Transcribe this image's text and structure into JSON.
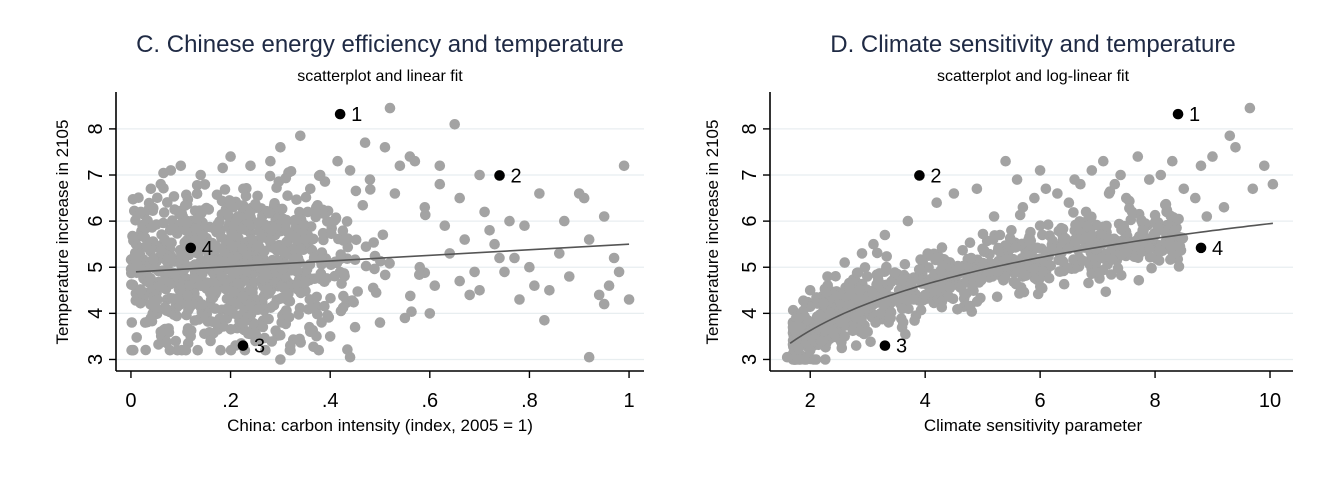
{
  "colors": {
    "title": "#1f2a44",
    "points": "#a3a3a3",
    "highlight": "#000000",
    "fit": "#555555",
    "grid": "#e8eef0",
    "axis": "#000000"
  },
  "chart_data": [
    {
      "type": "scatter",
      "title": "C.  Chinese energy efficiency and temperature",
      "subtitle": "scatterplot and linear fit",
      "xlabel": "China: carbon intensity  (index, 2005 = 1)",
      "ylabel": "Temperature increase in 2105",
      "xlim": [
        -0.03,
        1.03
      ],
      "ylim": [
        2.75,
        8.8
      ],
      "xticks": [
        0,
        0.2,
        0.4,
        0.6,
        0.8,
        1
      ],
      "xtick_labels": [
        "0",
        ".2",
        ".4",
        ".6",
        ".8",
        "1"
      ],
      "yticks": [
        3,
        4,
        5,
        6,
        7,
        8
      ],
      "ytick_labels": [
        "3",
        "4",
        "5",
        "6",
        "7",
        "8"
      ],
      "fit": {
        "type": "linear",
        "x": [
          0.01,
          1.0
        ],
        "y": [
          4.9,
          5.5
        ]
      },
      "highlighted": [
        {
          "label": "1",
          "x": 0.42,
          "y": 8.32
        },
        {
          "label": "2",
          "x": 0.74,
          "y": 6.99
        },
        {
          "label": "3",
          "x": 0.225,
          "y": 3.3
        },
        {
          "label": "4",
          "x": 0.12,
          "y": 5.42
        }
      ],
      "points": [
        [
          0.52,
          8.45
        ],
        [
          0.65,
          8.1
        ],
        [
          0.34,
          7.85
        ],
        [
          0.99,
          7.2
        ],
        [
          0.47,
          7.7
        ],
        [
          0.51,
          7.6
        ],
        [
          0.3,
          7.6
        ],
        [
          0.28,
          7.3
        ],
        [
          0.2,
          7.4
        ],
        [
          0.56,
          7.4
        ],
        [
          0.57,
          7.3
        ],
        [
          0.62,
          7.2
        ],
        [
          0.54,
          7.2
        ],
        [
          0.7,
          7.0
        ],
        [
          0.44,
          7.1
        ],
        [
          0.82,
          6.6
        ],
        [
          0.9,
          6.6
        ],
        [
          0.91,
          6.5
        ],
        [
          0.95,
          6.1
        ],
        [
          0.87,
          6.0
        ],
        [
          0.79,
          5.9
        ],
        [
          0.76,
          6.0
        ],
        [
          0.72,
          5.8
        ],
        [
          0.92,
          5.6
        ],
        [
          0.97,
          5.2
        ],
        [
          0.98,
          4.9
        ],
        [
          0.96,
          4.6
        ],
        [
          0.94,
          4.4
        ],
        [
          0.95,
          4.2
        ],
        [
          1.0,
          4.3
        ],
        [
          0.92,
          3.05
        ],
        [
          0.83,
          3.85
        ],
        [
          0.81,
          4.6
        ],
        [
          0.84,
          4.5
        ],
        [
          0.78,
          4.3
        ],
        [
          0.66,
          4.7
        ],
        [
          0.68,
          4.4
        ],
        [
          0.7,
          4.5
        ],
        [
          0.6,
          4.0
        ],
        [
          0.55,
          3.9
        ],
        [
          0.5,
          3.8
        ],
        [
          0.45,
          3.7
        ],
        [
          0.44,
          3.05
        ],
        [
          0.3,
          3.0
        ],
        [
          0.32,
          3.3
        ],
        [
          0.27,
          3.2
        ],
        [
          0.18,
          3.2
        ],
        [
          0.62,
          6.8
        ],
        [
          0.66,
          6.5
        ],
        [
          0.71,
          6.2
        ],
        [
          0.73,
          5.5
        ],
        [
          0.74,
          5.2
        ],
        [
          0.75,
          4.9
        ],
        [
          0.77,
          5.2
        ],
        [
          0.8,
          5.0
        ],
        [
          0.86,
          5.3
        ],
        [
          0.88,
          4.8
        ],
        [
          0.63,
          5.9
        ],
        [
          0.59,
          6.3
        ],
        [
          0.53,
          6.6
        ],
        [
          0.48,
          6.9
        ],
        [
          0.58,
          5.0
        ],
        [
          0.61,
          4.6
        ],
        [
          0.64,
          5.3
        ],
        [
          0.67,
          5.6
        ],
        [
          0.69,
          4.9
        ],
        [
          0.04,
          6.7
        ],
        [
          0.06,
          6.8
        ],
        [
          0.08,
          7.1
        ],
        [
          0.1,
          7.2
        ],
        [
          0.14,
          7.0
        ],
        [
          0.02,
          6.2
        ],
        [
          0.01,
          5.2
        ],
        [
          0.02,
          4.5
        ],
        [
          0.04,
          3.9
        ],
        [
          0.06,
          3.6
        ],
        [
          0.09,
          3.4
        ],
        [
          0.12,
          3.5
        ],
        [
          0.16,
          3.4
        ],
        [
          0.21,
          3.3
        ],
        [
          0.25,
          3.4
        ],
        [
          0.36,
          3.6
        ],
        [
          0.4,
          3.5
        ],
        [
          0.38,
          7.0
        ],
        [
          0.36,
          6.7
        ],
        [
          0.24,
          7.2
        ]
      ],
      "cloud": {
        "n": 900,
        "x_center": 0.2,
        "x_spread": 0.13,
        "y_center": 5.0,
        "y_spread": 0.85
      }
    },
    {
      "type": "scatter",
      "title": "D.  Climate sensitivity and temperature",
      "subtitle": "scatterplot and log-linear fit",
      "xlabel": "Climate sensitivity parameter",
      "ylabel": "Temperature increase in 2105",
      "xlim": [
        1.3,
        10.4
      ],
      "ylim": [
        2.75,
        8.8
      ],
      "xticks": [
        2,
        4,
        6,
        8,
        10
      ],
      "xtick_labels": [
        "2",
        "4",
        "6",
        "8",
        "10"
      ],
      "yticks": [
        3,
        4,
        5,
        6,
        7,
        8
      ],
      "ytick_labels": [
        "3",
        "4",
        "5",
        "6",
        "7",
        "8"
      ],
      "fit": {
        "type": "log-linear",
        "a": 1.44,
        "b": 2.63,
        "x_range": [
          1.65,
          10.05
        ]
      },
      "highlighted": [
        {
          "label": "1",
          "x": 8.4,
          "y": 8.32
        },
        {
          "label": "2",
          "x": 3.9,
          "y": 6.99
        },
        {
          "label": "3",
          "x": 3.3,
          "y": 3.3
        },
        {
          "label": "4",
          "x": 8.8,
          "y": 5.42
        }
      ],
      "points": [
        [
          9.65,
          8.45
        ],
        [
          9.3,
          7.85
        ],
        [
          9.9,
          7.2
        ],
        [
          10.05,
          6.8
        ],
        [
          9.7,
          6.7
        ],
        [
          9.2,
          6.3
        ],
        [
          8.9,
          6.1
        ],
        [
          8.7,
          6.5
        ],
        [
          8.5,
          6.7
        ],
        [
          8.2,
          6.2
        ],
        [
          8.0,
          5.7
        ],
        [
          7.8,
          5.8
        ],
        [
          7.6,
          6.2
        ],
        [
          7.4,
          7.0
        ],
        [
          7.2,
          6.6
        ],
        [
          7.1,
          7.3
        ],
        [
          6.9,
          7.1
        ],
        [
          6.7,
          6.8
        ],
        [
          6.5,
          6.4
        ],
        [
          6.4,
          5.6
        ],
        [
          6.2,
          5.4
        ],
        [
          6.0,
          5.9
        ],
        [
          5.8,
          5.6
        ],
        [
          9.4,
          7.6
        ],
        [
          9.0,
          7.4
        ],
        [
          8.8,
          7.2
        ],
        [
          8.3,
          7.3
        ],
        [
          8.1,
          7.0
        ],
        [
          7.9,
          6.9
        ],
        [
          7.7,
          7.4
        ],
        [
          7.5,
          6.5
        ],
        [
          7.3,
          6.8
        ],
        [
          6.8,
          6.2
        ],
        [
          6.6,
          6.9
        ],
        [
          6.3,
          6.6
        ],
        [
          6.1,
          6.7
        ],
        [
          5.9,
          6.5
        ],
        [
          5.7,
          6.3
        ],
        [
          5.5,
          5.8
        ],
        [
          5.3,
          5.7
        ],
        [
          5.2,
          6.1
        ],
        [
          5.0,
          5.4
        ],
        [
          4.8,
          5.2
        ],
        [
          4.6,
          5.0
        ],
        [
          4.4,
          4.8
        ],
        [
          4.2,
          4.5
        ],
        [
          4.0,
          4.4
        ],
        [
          3.8,
          4.3
        ],
        [
          3.6,
          4.1
        ],
        [
          3.4,
          3.9
        ],
        [
          3.0,
          3.6
        ],
        [
          2.8,
          3.3
        ],
        [
          2.6,
          3.5
        ],
        [
          2.4,
          3.6
        ],
        [
          2.2,
          3.4
        ],
        [
          2.0,
          3.2
        ],
        [
          1.9,
          3.0
        ],
        [
          1.6,
          3.05
        ],
        [
          2.1,
          3.0
        ],
        [
          5.4,
          7.3
        ],
        [
          6.0,
          7.1
        ],
        [
          5.6,
          6.9
        ],
        [
          4.9,
          6.7
        ],
        [
          4.5,
          6.6
        ],
        [
          4.2,
          6.4
        ],
        [
          3.7,
          6.0
        ],
        [
          3.3,
          5.7
        ],
        [
          3.1,
          5.5
        ],
        [
          2.9,
          5.3
        ],
        [
          2.6,
          5.1
        ],
        [
          2.3,
          4.8
        ],
        [
          2.0,
          4.5
        ],
        [
          1.8,
          3.9
        ],
        [
          1.7,
          3.7
        ]
      ],
      "cloud": {
        "n": 900,
        "fit_noise": 0.33
      }
    }
  ]
}
